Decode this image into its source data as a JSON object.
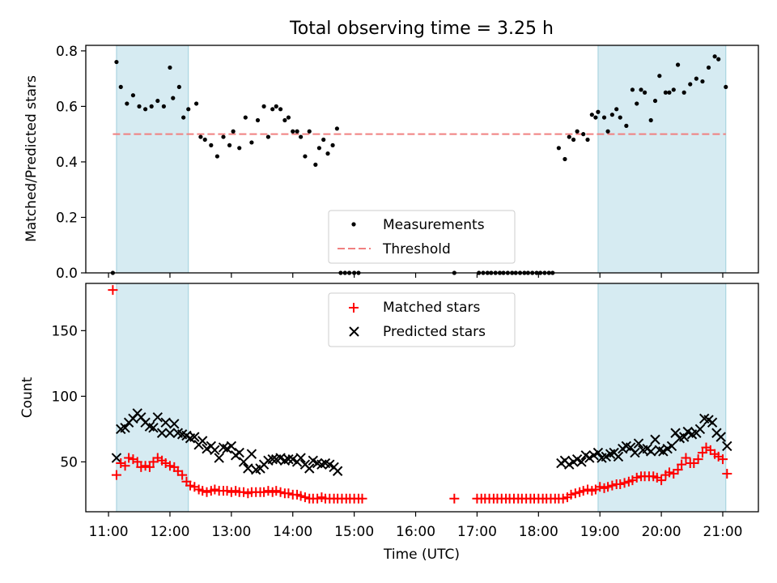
{
  "title": "Total observing time = 3.25 h",
  "chart_data": [
    {
      "type": "scatter",
      "ylabel": "Matched/Predicted stars",
      "ylim": [
        0,
        0.82
      ],
      "yticks": [
        0.0,
        0.2,
        0.4,
        0.6,
        0.8
      ],
      "ytick_labels": [
        "0.0",
        "0.2",
        "0.4",
        "0.6",
        "0.8"
      ],
      "xlim": [
        10.63,
        21.58
      ],
      "shaded_spans": [
        [
          11.13,
          12.3
        ],
        [
          18.97,
          21.05
        ]
      ],
      "threshold": {
        "name": "Threshold",
        "y": 0.5,
        "x_range": [
          11.07,
          21.05
        ],
        "color": "#f08080"
      },
      "legend": {
        "placement": "lower-center",
        "entries": [
          "Measurements",
          "Threshold"
        ]
      },
      "series": [
        {
          "name": "Measurements",
          "marker": "dot",
          "color": "#000000",
          "x": [
            11.07,
            11.13,
            11.2,
            11.3,
            11.4,
            11.5,
            11.6,
            11.7,
            11.8,
            11.9,
            12.0,
            12.05,
            12.15,
            12.22,
            12.3,
            12.43,
            12.5,
            12.57,
            12.67,
            12.77,
            12.87,
            12.97,
            13.03,
            13.13,
            13.23,
            13.33,
            13.43,
            13.53,
            13.6,
            13.67,
            13.73,
            13.8,
            13.87,
            13.93,
            14.0,
            14.07,
            14.13,
            14.2,
            14.27,
            14.37,
            14.43,
            14.5,
            14.57,
            14.65,
            14.72,
            14.78,
            14.85,
            14.92,
            15.0,
            15.07,
            16.63,
            17.03,
            17.1,
            17.17,
            17.23,
            17.3,
            17.37,
            17.43,
            17.5,
            17.57,
            17.63,
            17.7,
            17.77,
            17.83,
            17.9,
            17.97,
            18.03,
            18.1,
            18.17,
            18.23,
            18.33,
            18.43,
            18.5,
            18.57,
            18.63,
            18.73,
            18.8,
            18.87,
            18.93,
            18.97,
            19.07,
            19.13,
            19.2,
            19.27,
            19.33,
            19.43,
            19.53,
            19.6,
            19.67,
            19.73,
            19.83,
            19.9,
            19.97,
            20.07,
            20.13,
            20.2,
            20.27,
            20.37,
            20.47,
            20.57,
            20.67,
            20.77,
            20.87,
            20.93,
            21.05
          ],
          "y": [
            0.0,
            0.76,
            0.67,
            0.61,
            0.64,
            0.6,
            0.59,
            0.6,
            0.62,
            0.6,
            0.74,
            0.63,
            0.67,
            0.56,
            0.59,
            0.61,
            0.49,
            0.48,
            0.46,
            0.42,
            0.49,
            0.46,
            0.51,
            0.45,
            0.56,
            0.47,
            0.55,
            0.6,
            0.49,
            0.59,
            0.6,
            0.59,
            0.55,
            0.56,
            0.51,
            0.51,
            0.49,
            0.42,
            0.51,
            0.39,
            0.45,
            0.48,
            0.43,
            0.46,
            0.52,
            0.0,
            0.0,
            0.0,
            0.0,
            0.0,
            0.0,
            0.0,
            0.0,
            0.0,
            0.0,
            0.0,
            0.0,
            0.0,
            0.0,
            0.0,
            0.0,
            0.0,
            0.0,
            0.0,
            0.0,
            0.0,
            0.0,
            0.0,
            0.0,
            0.0,
            0.45,
            0.41,
            0.49,
            0.48,
            0.51,
            0.5,
            0.48,
            0.57,
            0.56,
            0.58,
            0.56,
            0.51,
            0.57,
            0.59,
            0.56,
            0.53,
            0.66,
            0.61,
            0.66,
            0.65,
            0.55,
            0.62,
            0.71,
            0.65,
            0.65,
            0.66,
            0.75,
            0.65,
            0.68,
            0.7,
            0.69,
            0.74,
            0.78,
            0.77,
            0.67
          ]
        }
      ]
    },
    {
      "type": "scatter",
      "ylabel": "Count",
      "xlabel": "Time (UTC)",
      "ylim": [
        12,
        186
      ],
      "yticks": [
        50,
        100,
        150
      ],
      "ytick_labels": [
        "50",
        "100",
        "150"
      ],
      "xlim": [
        10.63,
        21.58
      ],
      "xticks": [
        11,
        12,
        13,
        14,
        15,
        16,
        17,
        18,
        19,
        20,
        21
      ],
      "xtick_labels": [
        "11:00",
        "12:00",
        "13:00",
        "14:00",
        "15:00",
        "16:00",
        "17:00",
        "18:00",
        "19:00",
        "20:00",
        "21:00"
      ],
      "shaded_spans": [
        [
          11.13,
          12.3
        ],
        [
          18.97,
          21.05
        ]
      ],
      "legend": {
        "placement": "upper-center",
        "entries": [
          "Matched stars",
          "Predicted stars"
        ]
      },
      "series": [
        {
          "name": "Matched stars",
          "marker": "plus",
          "color": "#ff0000",
          "x": [
            11.07,
            11.13,
            11.2,
            11.27,
            11.33,
            11.4,
            11.47,
            11.53,
            11.6,
            11.67,
            11.73,
            11.8,
            11.87,
            11.93,
            12.0,
            12.07,
            12.13,
            12.2,
            12.27,
            12.33,
            12.4,
            12.47,
            12.53,
            12.6,
            12.67,
            12.73,
            12.8,
            12.87,
            12.93,
            13.0,
            13.07,
            13.13,
            13.2,
            13.27,
            13.33,
            13.4,
            13.47,
            13.53,
            13.6,
            13.67,
            13.73,
            13.8,
            13.87,
            13.93,
            14.0,
            14.07,
            14.13,
            14.2,
            14.27,
            14.33,
            14.4,
            14.47,
            14.53,
            14.6,
            14.67,
            14.73,
            14.8,
            14.87,
            14.93,
            15.0,
            15.07,
            15.13,
            16.63,
            17.0,
            17.07,
            17.13,
            17.2,
            17.27,
            17.33,
            17.4,
            17.47,
            17.53,
            17.6,
            17.67,
            17.73,
            17.8,
            17.87,
            17.93,
            18.0,
            18.07,
            18.13,
            18.2,
            18.27,
            18.33,
            18.4,
            18.47,
            18.53,
            18.6,
            18.67,
            18.73,
            18.8,
            18.87,
            18.93,
            19.0,
            19.07,
            19.13,
            19.2,
            19.27,
            19.33,
            19.4,
            19.47,
            19.53,
            19.6,
            19.67,
            19.73,
            19.8,
            19.87,
            19.93,
            20.0,
            20.07,
            20.13,
            20.2,
            20.27,
            20.33,
            20.4,
            20.47,
            20.53,
            20.6,
            20.67,
            20.73,
            20.8,
            20.87,
            20.93,
            21.0,
            21.07
          ],
          "y": [
            181,
            40,
            49,
            47,
            53,
            52,
            50,
            46,
            47,
            46,
            50,
            53,
            51,
            49,
            47,
            46,
            43,
            40,
            35,
            32,
            31,
            29,
            28,
            27,
            28,
            29,
            28,
            28,
            28,
            27,
            28,
            27,
            27,
            26,
            27,
            27,
            27,
            27,
            28,
            27,
            28,
            27,
            26,
            26,
            25,
            25,
            24,
            23,
            22,
            22,
            22,
            23,
            22,
            22,
            22,
            22,
            22,
            22,
            22,
            22,
            22,
            22,
            22,
            22,
            22,
            22,
            22,
            22,
            22,
            22,
            22,
            22,
            22,
            22,
            22,
            22,
            22,
            22,
            22,
            22,
            22,
            22,
            22,
            22,
            22,
            23,
            25,
            26,
            27,
            28,
            29,
            28,
            29,
            31,
            30,
            31,
            32,
            33,
            33,
            34,
            35,
            36,
            38,
            39,
            39,
            39,
            39,
            38,
            36,
            40,
            42,
            41,
            44,
            48,
            53,
            49,
            49,
            52,
            57,
            61,
            59,
            56,
            54,
            52,
            41
          ]
        },
        {
          "name": "Predicted stars",
          "marker": "x",
          "color": "#000000",
          "x": [
            11.13,
            11.2,
            11.27,
            11.33,
            11.4,
            11.47,
            11.53,
            11.6,
            11.67,
            11.73,
            11.8,
            11.87,
            11.93,
            12.0,
            12.07,
            12.13,
            12.2,
            12.27,
            12.33,
            12.4,
            12.47,
            12.53,
            12.6,
            12.67,
            12.73,
            12.8,
            12.87,
            12.93,
            13.0,
            13.07,
            13.13,
            13.2,
            13.27,
            13.33,
            13.4,
            13.47,
            13.53,
            13.6,
            13.67,
            13.73,
            13.8,
            13.87,
            13.93,
            14.0,
            14.07,
            14.13,
            14.2,
            14.27,
            14.33,
            14.4,
            14.47,
            14.53,
            14.6,
            14.67,
            14.73,
            18.37,
            18.43,
            18.5,
            18.57,
            18.63,
            18.7,
            18.77,
            18.83,
            18.9,
            18.97,
            19.03,
            19.1,
            19.17,
            19.23,
            19.3,
            19.37,
            19.43,
            19.5,
            19.57,
            19.63,
            19.7,
            19.77,
            19.83,
            19.9,
            19.97,
            20.03,
            20.1,
            20.17,
            20.23,
            20.3,
            20.37,
            20.43,
            20.5,
            20.57,
            20.63,
            20.7,
            20.77,
            20.83,
            20.9,
            20.97,
            21.07
          ],
          "y": [
            53,
            75,
            76,
            80,
            83,
            87,
            84,
            80,
            77,
            76,
            84,
            72,
            80,
            72,
            79,
            72,
            71,
            70,
            68,
            69,
            63,
            66,
            60,
            62,
            59,
            53,
            61,
            60,
            62,
            55,
            57,
            50,
            45,
            56,
            44,
            45,
            48,
            51,
            52,
            52,
            53,
            51,
            52,
            52,
            50,
            53,
            48,
            45,
            51,
            49,
            48,
            49,
            48,
            46,
            43,
            49,
            51,
            48,
            50,
            52,
            50,
            55,
            53,
            55,
            57,
            53,
            54,
            56,
            57,
            54,
            60,
            62,
            61,
            57,
            64,
            59,
            60,
            58,
            67,
            59,
            58,
            60,
            62,
            72,
            68,
            69,
            73,
            71,
            72,
            75,
            83,
            82,
            80,
            72,
            69,
            62
          ]
        }
      ]
    }
  ]
}
